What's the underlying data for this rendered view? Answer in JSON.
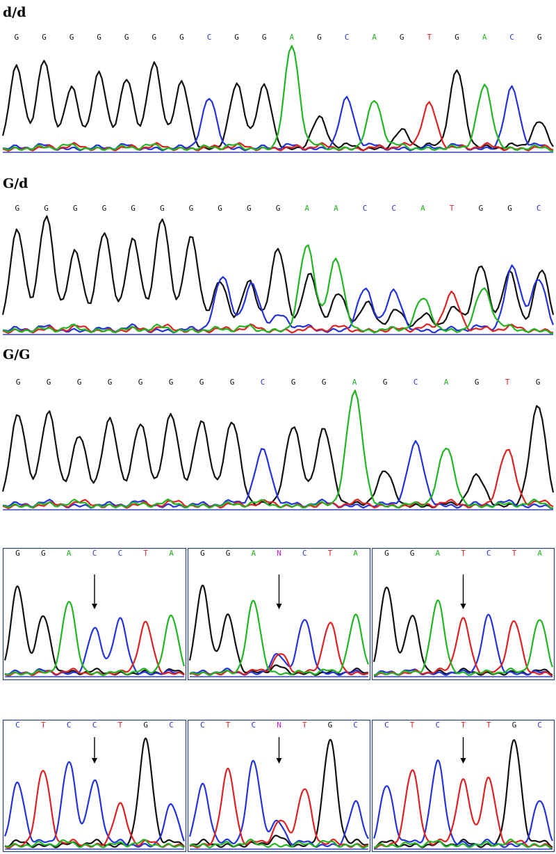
{
  "colors": {
    "A": "#22b522",
    "C": "#2233dd",
    "G": "#111111",
    "T": "#dd2222",
    "N": "#cc22cc",
    "frame": "#2a3f6a",
    "arrow": "#000000"
  },
  "panels": [
    {
      "label": "d/d",
      "bases": [
        "G",
        "G",
        "G",
        "G",
        "G",
        "G",
        "G",
        "C",
        "G",
        "G",
        "A",
        "G",
        "C",
        "A",
        "G",
        "T",
        "G",
        "A",
        "C",
        "G"
      ],
      "peaks": [
        0.8,
        0.86,
        0.6,
        0.74,
        0.68,
        0.83,
        0.65,
        0.5,
        0.63,
        0.62,
        1.0,
        0.32,
        0.5,
        0.48,
        0.2,
        0.45,
        0.77,
        0.62,
        0.6,
        0.28
      ]
    },
    {
      "label": "G/d",
      "bases": [
        "G",
        "G",
        "G",
        "G",
        "G",
        "G",
        "G",
        "G",
        "G",
        "G",
        "A",
        "A",
        "C",
        "C",
        "A",
        "T",
        "G",
        "G",
        "C"
      ],
      "peaks": [
        0.88,
        1.0,
        0.7,
        0.86,
        0.8,
        0.98,
        0.82,
        0.44,
        0.44,
        0.72,
        0.75,
        0.63,
        0.38,
        0.36,
        0.3,
        0.34,
        0.58,
        0.52,
        0.46
      ],
      "secondary": [
        0,
        0,
        0,
        0,
        0,
        0,
        0,
        0.43,
        0.4,
        0.12,
        0.48,
        0.3,
        0.2,
        0.18,
        0.12,
        0.16,
        0.35,
        0.55,
        0.48
      ]
    },
    {
      "label": "G/G",
      "bases": [
        "G",
        "G",
        "G",
        "G",
        "G",
        "G",
        "G",
        "G",
        "C",
        "G",
        "G",
        "A",
        "G",
        "C",
        "A",
        "G",
        "T",
        "G"
      ],
      "peaks": [
        0.8,
        0.82,
        0.62,
        0.76,
        0.72,
        0.8,
        0.74,
        0.74,
        0.5,
        0.7,
        0.68,
        1.0,
        0.32,
        0.56,
        0.52,
        0.28,
        0.5,
        0.88
      ]
    }
  ],
  "snp_panels": [
    {
      "bases": [
        "G",
        "G",
        "A",
        "C",
        "C",
        "T",
        "A"
      ],
      "arrow_index": 3
    },
    {
      "bases": [
        "G",
        "G",
        "A",
        "N",
        "C",
        "T",
        "A"
      ],
      "arrow_index": 3
    },
    {
      "bases": [
        "G",
        "G",
        "A",
        "T",
        "C",
        "T",
        "A"
      ],
      "arrow_index": 3
    },
    {
      "bases": [
        "C",
        "T",
        "C",
        "C",
        "T",
        "G",
        "C"
      ],
      "arrow_index": 3
    },
    {
      "bases": [
        "C",
        "T",
        "C",
        "N",
        "T",
        "G",
        "C"
      ],
      "arrow_index": 3
    },
    {
      "bases": [
        "C",
        "T",
        "C",
        "T",
        "T",
        "G",
        "C"
      ],
      "arrow_index": 3
    }
  ]
}
